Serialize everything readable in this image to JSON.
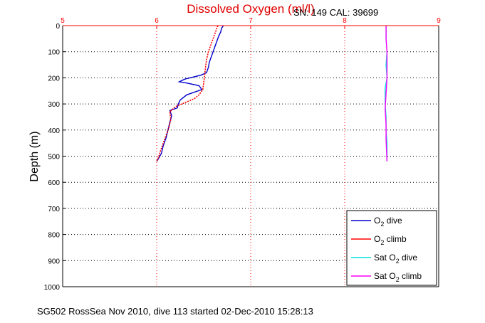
{
  "chart_data": {
    "type": "line",
    "title": "Dissolved Oxygen (ml/l)",
    "serial_label": "SN: 149  CAL: 39699",
    "footer": "SG502 RossSea Nov 2010, dive 113 started 02-Dec-2010 15:28:13",
    "xlabel": "",
    "ylabel": "Depth (m)",
    "xlim": [
      5,
      9
    ],
    "ylim": [
      0,
      1000
    ],
    "y_reversed": true,
    "x_axis_position": "top",
    "xticks": [
      "5",
      "6",
      "7",
      "8",
      "9"
    ],
    "yticks": [
      "0",
      "100",
      "200",
      "300",
      "400",
      "500",
      "600",
      "700",
      "800",
      "900",
      "1000"
    ],
    "grid": true,
    "legend_position": "bottom-right",
    "colors": {
      "title": "#e00000",
      "x_axis": "#ff0000",
      "o2_dive": "#0000cc",
      "o2_climb": "#ff0000",
      "sat_dive": "#00e0e0",
      "sat_climb": "#ff00ff"
    },
    "series": [
      {
        "name": "dive",
        "legend_prefix": "O",
        "legend_sub": "2",
        "legend_suffix": " dive",
        "color": "#0000cc",
        "points": [
          [
            6.71,
            0
          ],
          [
            6.69,
            10
          ],
          [
            6.68,
            25
          ],
          [
            6.66,
            40
          ],
          [
            6.64,
            60
          ],
          [
            6.62,
            80
          ],
          [
            6.6,
            100
          ],
          [
            6.58,
            120
          ],
          [
            6.56,
            140
          ],
          [
            6.55,
            160
          ],
          [
            6.53,
            180
          ],
          [
            6.47,
            190
          ],
          [
            6.3,
            205
          ],
          [
            6.24,
            215
          ],
          [
            6.32,
            220
          ],
          [
            6.45,
            230
          ],
          [
            6.48,
            245
          ],
          [
            6.32,
            265
          ],
          [
            6.25,
            285
          ],
          [
            6.23,
            300
          ],
          [
            6.22,
            315
          ],
          [
            6.14,
            325
          ],
          [
            6.16,
            345
          ],
          [
            6.14,
            370
          ],
          [
            6.12,
            400
          ],
          [
            6.1,
            430
          ],
          [
            6.07,
            460
          ],
          [
            6.05,
            490
          ],
          [
            6.01,
            515
          ],
          [
            6.0,
            520
          ]
        ]
      },
      {
        "name": "climb",
        "legend_prefix": "O",
        "legend_sub": "2",
        "legend_suffix": " climb",
        "color": "#ff0000",
        "points": [
          [
            6.65,
            0
          ],
          [
            6.63,
            20
          ],
          [
            6.61,
            40
          ],
          [
            6.59,
            60
          ],
          [
            6.57,
            80
          ],
          [
            6.55,
            100
          ],
          [
            6.53,
            130
          ],
          [
            6.52,
            160
          ],
          [
            6.51,
            190
          ],
          [
            6.5,
            220
          ],
          [
            6.49,
            245
          ],
          [
            6.45,
            265
          ],
          [
            6.4,
            280
          ],
          [
            6.3,
            295
          ],
          [
            6.2,
            310
          ],
          [
            6.14,
            330
          ],
          [
            6.15,
            360
          ],
          [
            6.13,
            390
          ],
          [
            6.1,
            420
          ],
          [
            6.07,
            450
          ],
          [
            6.04,
            480
          ],
          [
            6.02,
            505
          ],
          [
            6.0,
            520
          ]
        ]
      },
      {
        "name": "Sat dive",
        "legend_prefix": "Sat O",
        "legend_sub": "2",
        "legend_suffix": " dive",
        "color": "#00e0e0",
        "points": [
          [
            8.44,
            0
          ],
          [
            8.44,
            50
          ],
          [
            8.45,
            100
          ],
          [
            8.44,
            150
          ],
          [
            8.45,
            200
          ],
          [
            8.43,
            240
          ],
          [
            8.43,
            300
          ],
          [
            8.44,
            350
          ],
          [
            8.44,
            400
          ],
          [
            8.45,
            450
          ],
          [
            8.45,
            520
          ]
        ]
      },
      {
        "name": "Sat climb",
        "legend_prefix": "Sat O",
        "legend_sub": "2",
        "legend_suffix": " climb",
        "color": "#ff00ff",
        "points": [
          [
            8.44,
            0
          ],
          [
            8.44,
            50
          ],
          [
            8.45,
            100
          ],
          [
            8.45,
            150
          ],
          [
            8.45,
            200
          ],
          [
            8.44,
            260
          ],
          [
            8.43,
            320
          ],
          [
            8.44,
            380
          ],
          [
            8.44,
            440
          ],
          [
            8.45,
            520
          ]
        ]
      }
    ]
  }
}
